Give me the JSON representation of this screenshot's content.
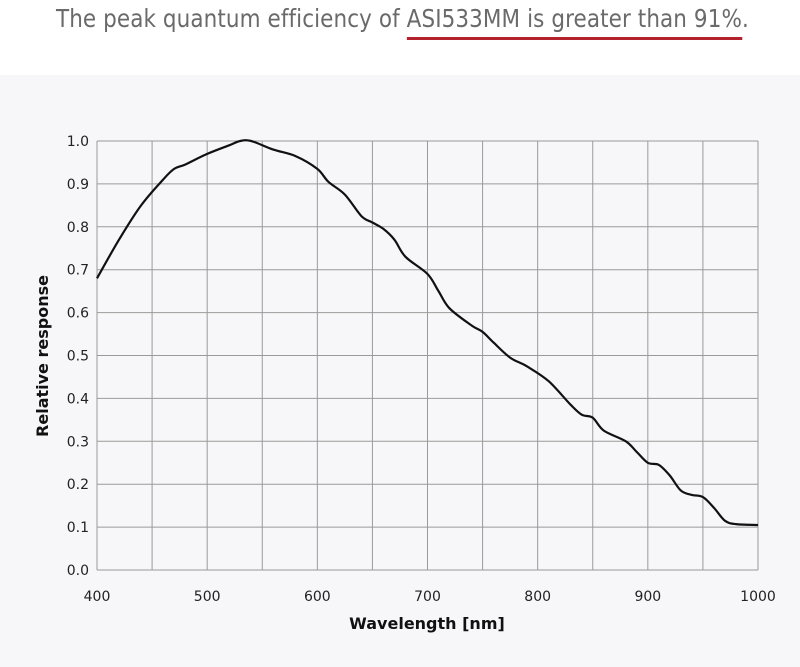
{
  "header": {
    "text_before": "The peak quantum efficiency of ",
    "text_highlight": "ASI533MM is greater than 91%",
    "text_after": ".",
    "underline_color": "#b3222c"
  },
  "chart_data": {
    "type": "line",
    "title": "",
    "xlabel": "Wavelength [nm]",
    "ylabel": "Relative response",
    "xlim": [
      400,
      1000
    ],
    "ylim": [
      0.0,
      1.0
    ],
    "grid": true,
    "x_gridlines": [
      400,
      450,
      500,
      550,
      600,
      650,
      700,
      750,
      800,
      850,
      900,
      950,
      1000
    ],
    "y_gridlines": [
      0.0,
      0.1,
      0.2,
      0.3,
      0.4,
      0.5,
      0.6,
      0.7,
      0.8,
      0.9,
      1.0
    ],
    "x_ticks": [
      400,
      500,
      600,
      700,
      800,
      900,
      1000
    ],
    "x_tick_labels": [
      "400",
      "500",
      "600",
      "700",
      "800",
      "900",
      "1000"
    ],
    "y_ticks": [
      0.0,
      0.1,
      0.2,
      0.3,
      0.4,
      0.5,
      0.6,
      0.7,
      0.8,
      0.9,
      1.0
    ],
    "y_tick_labels": [
      "0.0",
      "0.1",
      "0.2",
      "0.3",
      "0.4",
      "0.5",
      "0.6",
      "0.7",
      "0.8",
      "0.9",
      "1.0"
    ],
    "series": [
      {
        "name": "ASI533MM relative response",
        "color": "#111111",
        "x": [
          400,
          420,
          440,
          460,
          470,
          480,
          500,
          520,
          530,
          540,
          560,
          580,
          600,
          610,
          625,
          640,
          650,
          660,
          670,
          680,
          700,
          710,
          720,
          740,
          750,
          760,
          775,
          790,
          810,
          830,
          840,
          850,
          860,
          880,
          890,
          900,
          910,
          920,
          930,
          940,
          950,
          960,
          970,
          980,
          1000
        ],
        "y": [
          0.68,
          0.77,
          0.85,
          0.91,
          0.935,
          0.945,
          0.97,
          0.99,
          1.0,
          1.0,
          0.98,
          0.965,
          0.935,
          0.905,
          0.875,
          0.825,
          0.81,
          0.795,
          0.77,
          0.73,
          0.69,
          0.65,
          0.61,
          0.57,
          0.555,
          0.53,
          0.495,
          0.475,
          0.44,
          0.385,
          0.362,
          0.355,
          0.325,
          0.3,
          0.275,
          0.25,
          0.245,
          0.22,
          0.185,
          0.175,
          0.17,
          0.145,
          0.115,
          0.107,
          0.105
        ]
      }
    ],
    "legend": "none"
  }
}
